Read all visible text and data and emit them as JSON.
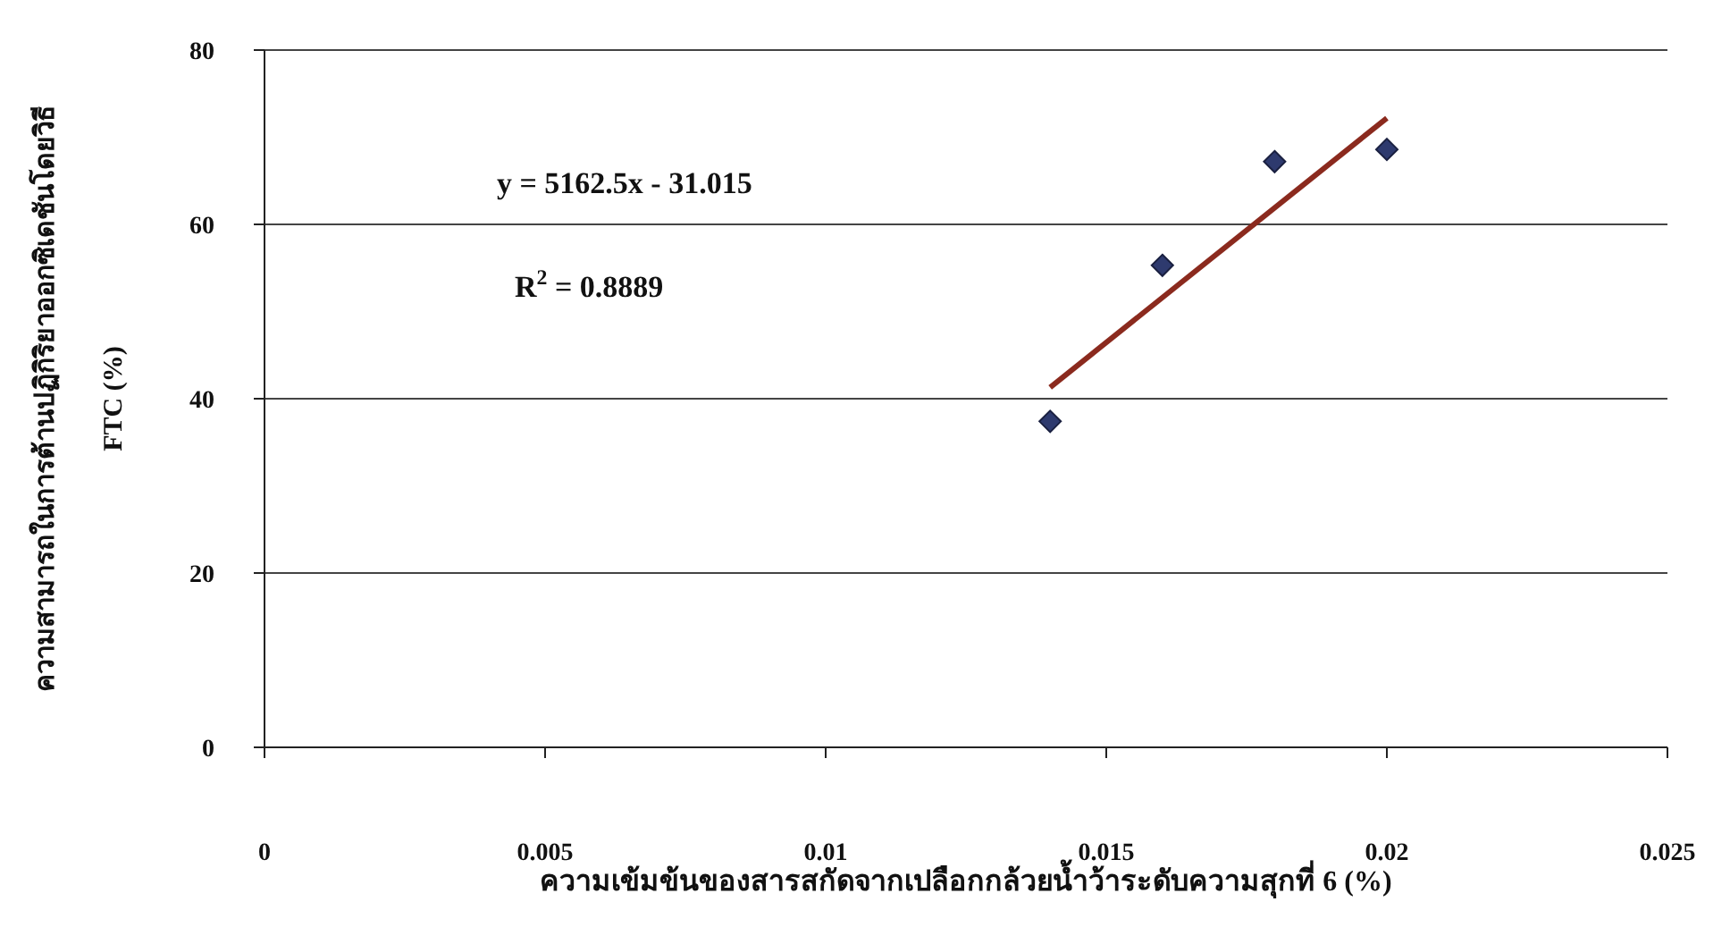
{
  "chart_data": {
    "type": "scatter",
    "xlabel": "ความเข้มข้นของสารสกัดจากเปลือกกล้วยน้ำว้าระดับความสุกที่ 6 (%)",
    "ylabel": "ความสามารถในการต้านปฏิกิริยาออกซิเดชันโดยวิธี\nFTC (%)",
    "xlim": [
      0,
      0.025
    ],
    "xticks": [
      0,
      0.005,
      0.01,
      0.015,
      0.02,
      0.025
    ],
    "ylim": [
      0,
      80
    ],
    "yticks": [
      0,
      20,
      40,
      60,
      80
    ],
    "grid": "y",
    "marker": "diamond",
    "series": [
      {
        "color": "#2e3a6e",
        "x": [
          0.014,
          0.016,
          0.018,
          0.02
        ],
        "values": [
          37.4,
          55.3,
          67.2,
          68.6
        ]
      },
      {
        "type": "line",
        "marker": "none",
        "color": "#8b2a1e",
        "x": [
          0.014,
          0.02
        ],
        "values": [
          41.3,
          72.2
        ]
      }
    ],
    "annotations": [
      "y = 5162.5x - 31.015",
      "R$^{2}$ = 0.8889"
    ]
  }
}
